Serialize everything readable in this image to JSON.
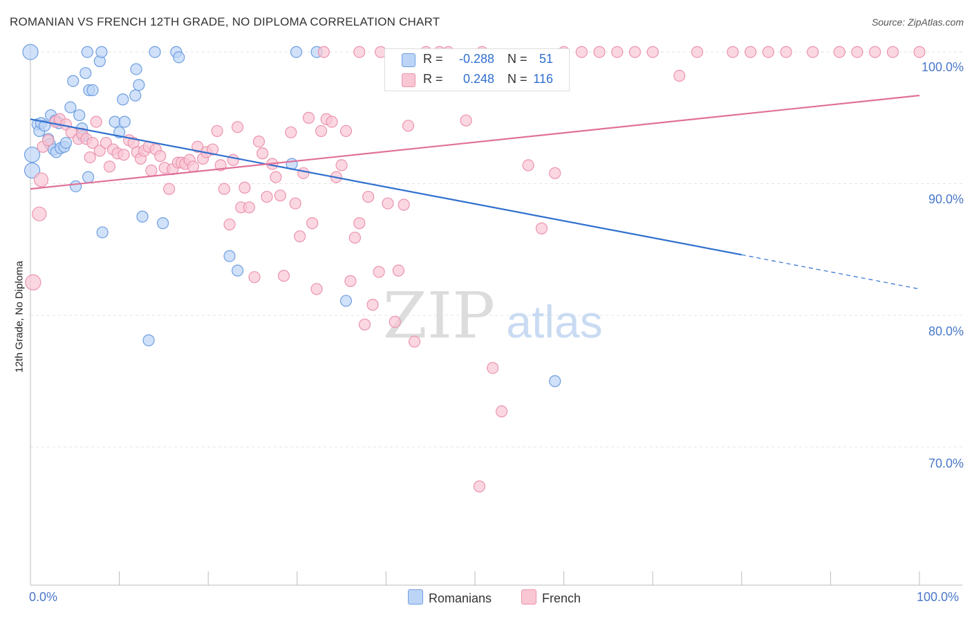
{
  "title": "ROMANIAN VS FRENCH 12TH GRADE, NO DIPLOMA CORRELATION CHART",
  "source": "Source: ZipAtlas.com",
  "watermark_zip": "ZIP",
  "watermark_atlas": "atlas",
  "colors": {
    "romanians_fill": "#bcd4f6",
    "romanians_stroke": "#6e9ee0",
    "romanians_line": "#2f6fce",
    "french_fill": "#f9c6d4",
    "french_stroke": "#eb93ae",
    "french_line": "#e07099",
    "axis_label": "#4a78c8",
    "grid": "#e4e4e4"
  },
  "legend_top": {
    "rows": [
      {
        "r_label": "R =",
        "r_value": "-0.288",
        "n_label": "N =",
        "n_value": "51"
      },
      {
        "r_label": "R =",
        "r_value": "0.248",
        "n_label": "N =",
        "n_value": "116"
      }
    ]
  },
  "legend_bottom": {
    "romanians": "Romanians",
    "french": "French"
  },
  "chart_data": {
    "type": "scatter",
    "title": "ROMANIAN VS FRENCH 12TH GRADE, NO DIPLOMA CORRELATION CHART",
    "xlabel": "",
    "ylabel": "12th Grade, No Diploma",
    "xlim": [
      0,
      100
    ],
    "ylim": [
      59.5,
      100.8
    ],
    "x_tick_labels": {
      "min": "0.0%",
      "max": "100.0%"
    },
    "y_ticks": [
      100,
      90,
      80,
      70
    ],
    "y_tick_labels": [
      "100.0%",
      "90.0%",
      "80.0%",
      "70.0%"
    ],
    "grid": true,
    "series": [
      {
        "name": "Romanians",
        "R": -0.288,
        "N": 51,
        "trend": {
          "x0": 0,
          "y0": 94.9,
          "x1": 80,
          "y1": 84.6,
          "dash_to_x": 100,
          "dash_to_y": 82.0
        },
        "points": [
          [
            0.2,
            91.0
          ],
          [
            0.2,
            92.2
          ],
          [
            0.8,
            94.5
          ],
          [
            1.0,
            94.0
          ],
          [
            1.2,
            94.6
          ],
          [
            1.6,
            94.4
          ],
          [
            2.0,
            93.4
          ],
          [
            2.2,
            93.0
          ],
          [
            2.3,
            95.2
          ],
          [
            2.6,
            92.6
          ],
          [
            2.8,
            94.8
          ],
          [
            2.9,
            92.4
          ],
          [
            3.2,
            94.6
          ],
          [
            3.4,
            92.7
          ],
          [
            3.8,
            92.8
          ],
          [
            4.0,
            93.1
          ],
          [
            4.5,
            95.8
          ],
          [
            4.8,
            97.8
          ],
          [
            5.1,
            89.8
          ],
          [
            5.5,
            95.2
          ],
          [
            5.8,
            94.2
          ],
          [
            5.9,
            93.6
          ],
          [
            6.2,
            98.4
          ],
          [
            6.5,
            90.5
          ],
          [
            6.6,
            97.1
          ],
          [
            7.0,
            97.1
          ],
          [
            6.4,
            100.0
          ],
          [
            7.8,
            99.3
          ],
          [
            8.0,
            100.0
          ],
          [
            8.1,
            86.3
          ],
          [
            9.5,
            94.7
          ],
          [
            10.0,
            93.9
          ],
          [
            10.4,
            96.4
          ],
          [
            10.6,
            94.7
          ],
          [
            11.8,
            96.7
          ],
          [
            11.9,
            98.7
          ],
          [
            12.2,
            97.5
          ],
          [
            12.6,
            87.5
          ],
          [
            13.3,
            78.1
          ],
          [
            14.0,
            100.0
          ],
          [
            14.9,
            87.0
          ],
          [
            16.4,
            100.0
          ],
          [
            16.7,
            99.6
          ],
          [
            22.4,
            84.5
          ],
          [
            23.3,
            83.4
          ],
          [
            29.4,
            91.5
          ],
          [
            29.9,
            100.0
          ],
          [
            32.2,
            100.0
          ],
          [
            35.5,
            81.1
          ],
          [
            59.0,
            75.0
          ],
          [
            0.0,
            100.0
          ]
        ]
      },
      {
        "name": "French",
        "R": 0.248,
        "N": 116,
        "trend": {
          "x0": 0,
          "y0": 89.6,
          "x1": 100,
          "y1": 96.7
        },
        "points": [
          [
            0.3,
            82.5
          ],
          [
            1.0,
            87.7
          ],
          [
            1.2,
            90.3
          ],
          [
            1.4,
            92.8
          ],
          [
            2.0,
            93.3
          ],
          [
            2.8,
            94.7
          ],
          [
            3.3,
            94.9
          ],
          [
            4.0,
            94.5
          ],
          [
            4.6,
            93.9
          ],
          [
            5.4,
            93.4
          ],
          [
            5.8,
            93.8
          ],
          [
            6.3,
            93.4
          ],
          [
            6.7,
            92.0
          ],
          [
            7.0,
            93.1
          ],
          [
            7.4,
            94.7
          ],
          [
            7.8,
            92.5
          ],
          [
            8.5,
            93.1
          ],
          [
            8.9,
            91.3
          ],
          [
            9.3,
            92.6
          ],
          [
            9.8,
            92.3
          ],
          [
            10.5,
            92.2
          ],
          [
            11.1,
            93.3
          ],
          [
            11.6,
            93.1
          ],
          [
            12.0,
            92.4
          ],
          [
            12.4,
            91.9
          ],
          [
            12.8,
            92.5
          ],
          [
            13.3,
            92.8
          ],
          [
            13.6,
            91.0
          ],
          [
            14.1,
            92.6
          ],
          [
            14.6,
            92.1
          ],
          [
            15.1,
            91.2
          ],
          [
            15.6,
            89.6
          ],
          [
            16.0,
            91.1
          ],
          [
            16.6,
            91.6
          ],
          [
            17.0,
            91.6
          ],
          [
            17.4,
            91.5
          ],
          [
            17.9,
            91.8
          ],
          [
            18.3,
            91.3
          ],
          [
            18.8,
            92.8
          ],
          [
            19.4,
            91.9
          ],
          [
            19.8,
            92.4
          ],
          [
            20.5,
            92.6
          ],
          [
            21.0,
            94.0
          ],
          [
            21.4,
            91.4
          ],
          [
            21.8,
            89.6
          ],
          [
            22.4,
            86.9
          ],
          [
            22.8,
            91.8
          ],
          [
            23.3,
            94.3
          ],
          [
            23.7,
            88.2
          ],
          [
            24.1,
            89.7
          ],
          [
            24.6,
            88.2
          ],
          [
            25.2,
            82.9
          ],
          [
            25.7,
            93.2
          ],
          [
            26.1,
            92.3
          ],
          [
            26.6,
            89.0
          ],
          [
            27.2,
            91.5
          ],
          [
            27.6,
            90.5
          ],
          [
            28.1,
            89.1
          ],
          [
            28.5,
            83.0
          ],
          [
            29.3,
            93.9
          ],
          [
            29.8,
            88.5
          ],
          [
            30.3,
            86.0
          ],
          [
            30.7,
            90.8
          ],
          [
            31.3,
            95.0
          ],
          [
            31.7,
            87.0
          ],
          [
            32.2,
            82.0
          ],
          [
            32.7,
            94.0
          ],
          [
            33.3,
            94.9
          ],
          [
            33.9,
            94.7
          ],
          [
            34.4,
            90.5
          ],
          [
            35.0,
            91.4
          ],
          [
            35.5,
            94.0
          ],
          [
            36.0,
            82.6
          ],
          [
            36.5,
            85.9
          ],
          [
            37.0,
            87.0
          ],
          [
            37.6,
            79.3
          ],
          [
            38.0,
            89.0
          ],
          [
            38.5,
            80.8
          ],
          [
            39.2,
            83.3
          ],
          [
            39.4,
            100.0
          ],
          [
            40.2,
            88.5
          ],
          [
            41.0,
            79.5
          ],
          [
            41.4,
            83.4
          ],
          [
            42.0,
            88.4
          ],
          [
            42.5,
            94.4
          ],
          [
            43.2,
            78.0
          ],
          [
            44.5,
            100.0
          ],
          [
            46.0,
            100.0
          ],
          [
            47.0,
            100.0
          ],
          [
            49.0,
            94.8
          ],
          [
            50.5,
            67.0
          ],
          [
            50.8,
            100.0
          ],
          [
            52.0,
            76.0
          ],
          [
            53.0,
            72.7
          ],
          [
            56.0,
            91.4
          ],
          [
            57.5,
            86.6
          ],
          [
            59.0,
            90.8
          ],
          [
            60.0,
            100.0
          ],
          [
            62.0,
            100.0
          ],
          [
            64.0,
            100.0
          ],
          [
            66.0,
            100.0
          ],
          [
            68.0,
            100.0
          ],
          [
            70.0,
            100.0
          ],
          [
            73.0,
            98.2
          ],
          [
            75.0,
            100.0
          ],
          [
            79.0,
            100.0
          ],
          [
            81.0,
            100.0
          ],
          [
            83.0,
            100.0
          ],
          [
            85.0,
            100.0
          ],
          [
            88.0,
            100.0
          ],
          [
            91.0,
            100.0
          ],
          [
            93.0,
            100.0
          ],
          [
            95.0,
            100.0
          ],
          [
            97.0,
            100.0
          ],
          [
            100.0,
            100.0
          ],
          [
            37.0,
            100.0
          ],
          [
            33.0,
            100.0
          ]
        ]
      }
    ]
  }
}
